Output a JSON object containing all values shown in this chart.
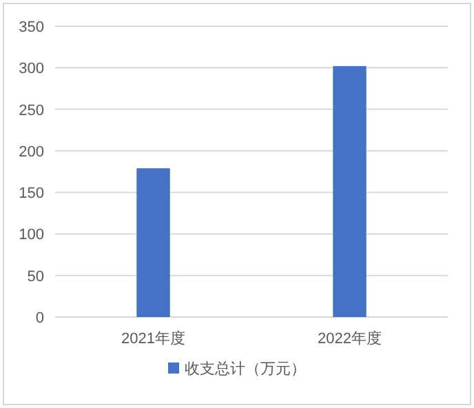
{
  "chart_data": {
    "type": "bar",
    "categories": [
      "2021年度",
      "2022年度"
    ],
    "series": [
      {
        "name": "收支总计（万元）",
        "color": "#4472c4",
        "values": [
          179,
          302
        ]
      }
    ],
    "ylim": [
      0,
      350
    ],
    "yticks": [
      0,
      50,
      100,
      150,
      200,
      250,
      300,
      350
    ],
    "grid": "y",
    "legend": "bottom"
  }
}
